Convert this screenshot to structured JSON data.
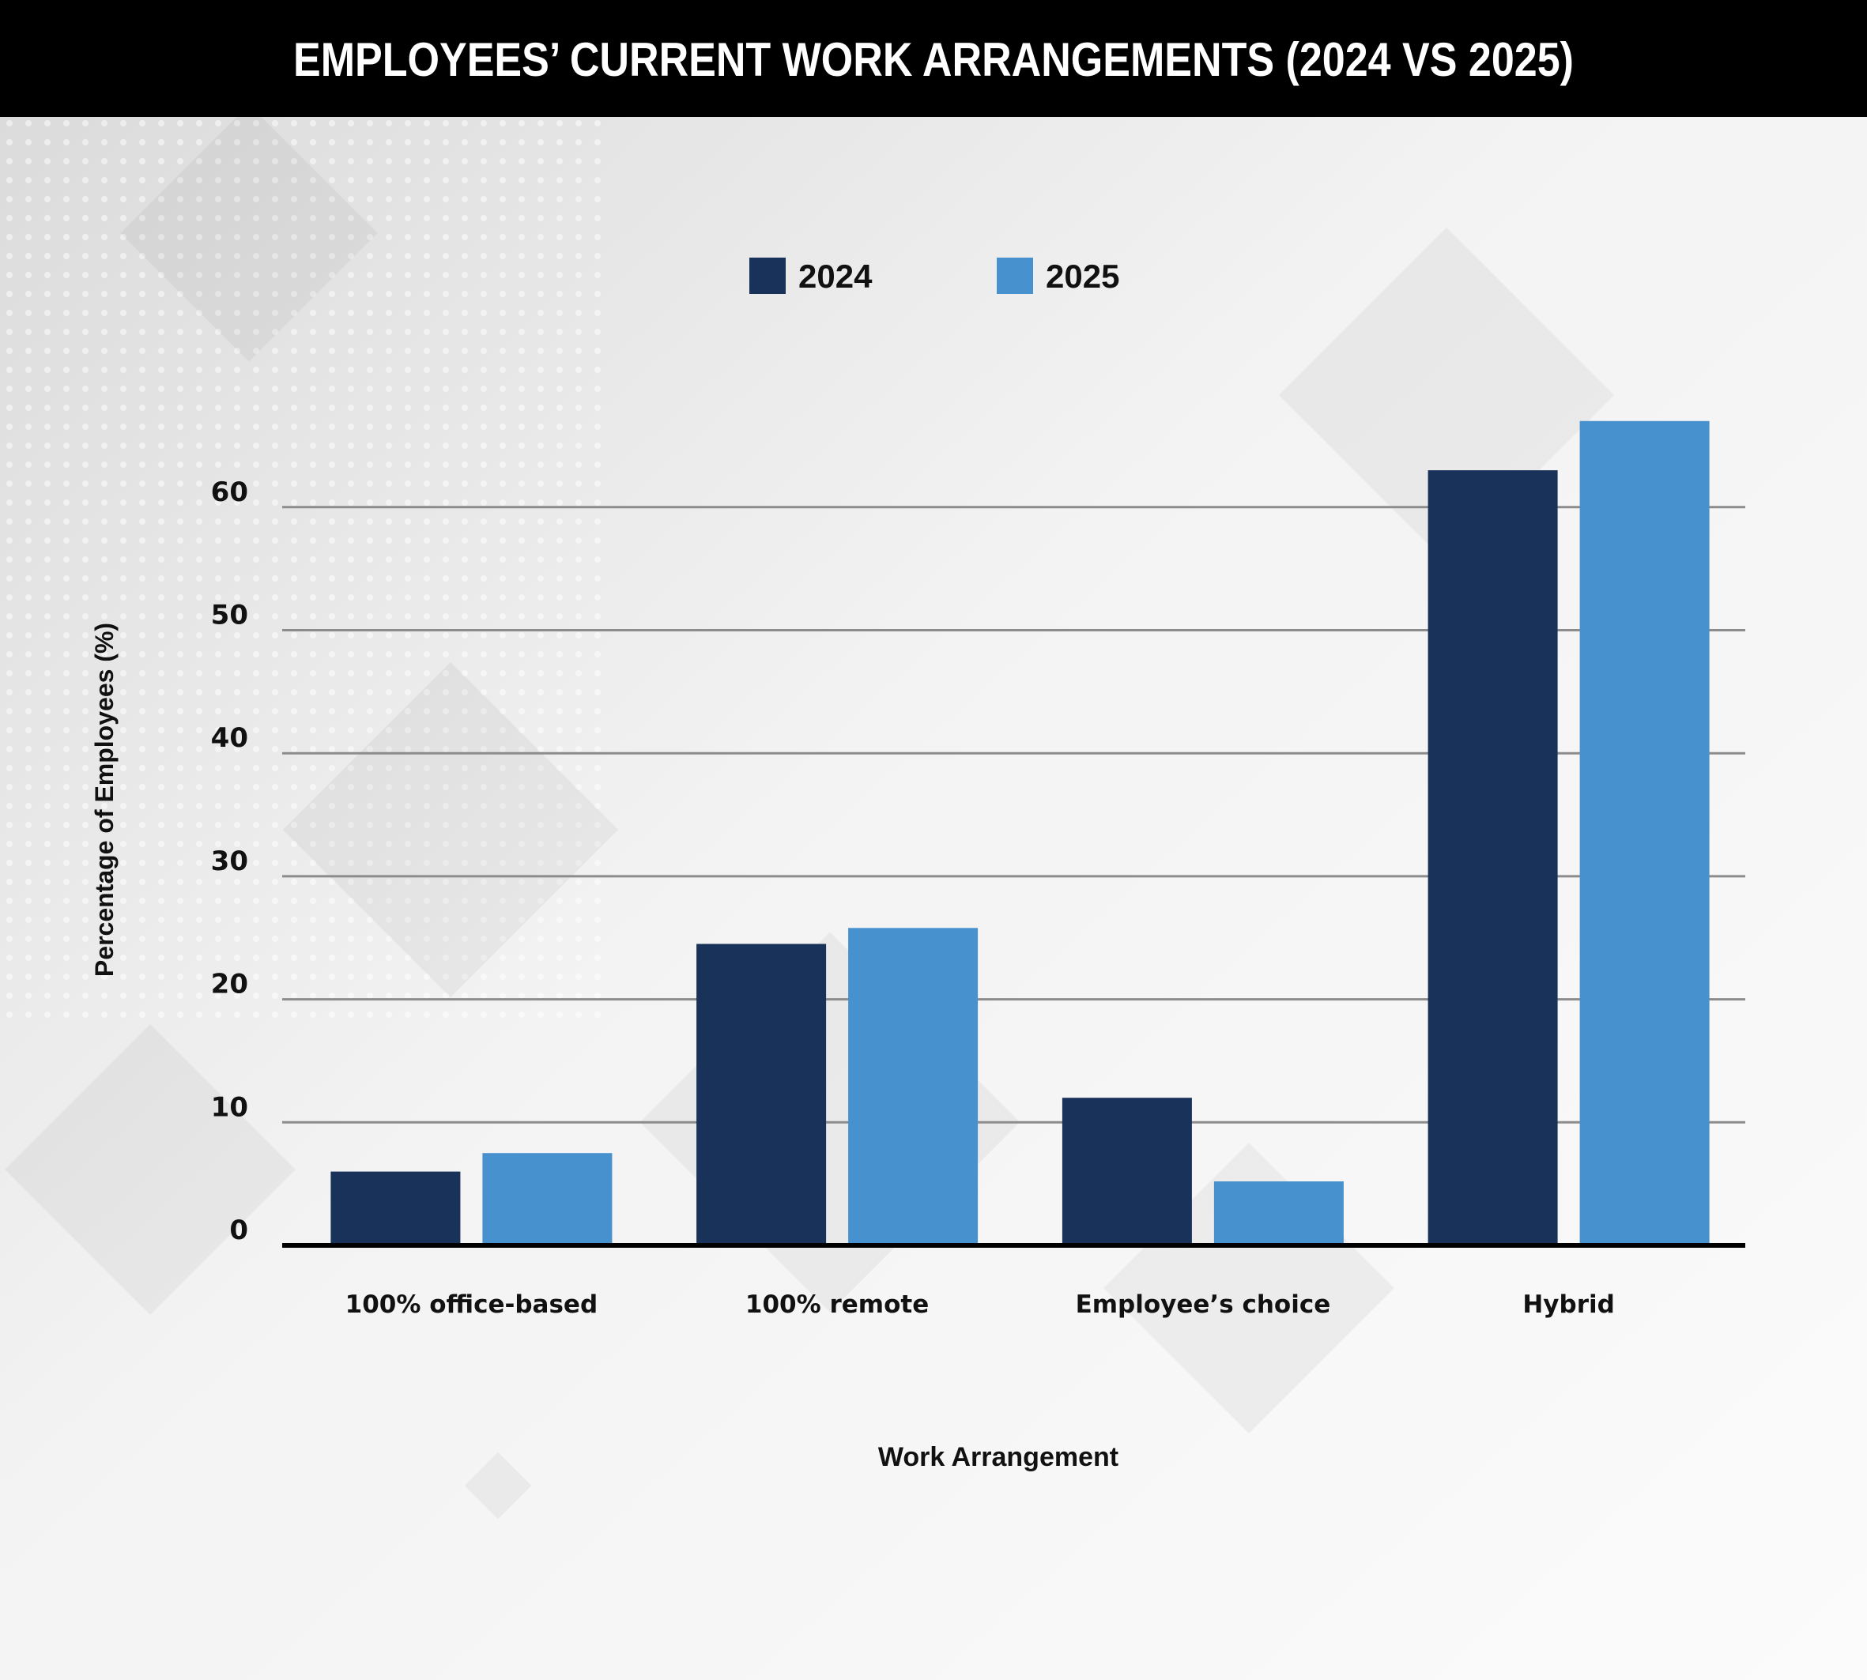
{
  "chart_data": {
    "type": "bar",
    "title": "EMPLOYEES’ CURRENT WORK ARRANGEMENTS (2024 VS 2025)",
    "xlabel": "Work Arrangement",
    "ylabel": "Percentage of Employees (%)",
    "categories": [
      "100% office-based",
      "100% remote",
      "Employee’s choice",
      "Hybrid"
    ],
    "series": [
      {
        "name": "2024",
        "color": "#183259",
        "values": [
          6,
          24.5,
          12,
          63
        ]
      },
      {
        "name": "2025",
        "color": "#4891cf",
        "values": [
          7.5,
          25.8,
          5.2,
          67
        ]
      }
    ],
    "y_ticks": [
      0,
      10,
      20,
      30,
      40,
      50,
      60
    ],
    "ylim": [
      0,
      70
    ],
    "grid": true,
    "legend_position": "top-center"
  },
  "colors": {
    "title_band": "#000000",
    "gridline": "#8c8c8c",
    "baseline": "#000000"
  }
}
